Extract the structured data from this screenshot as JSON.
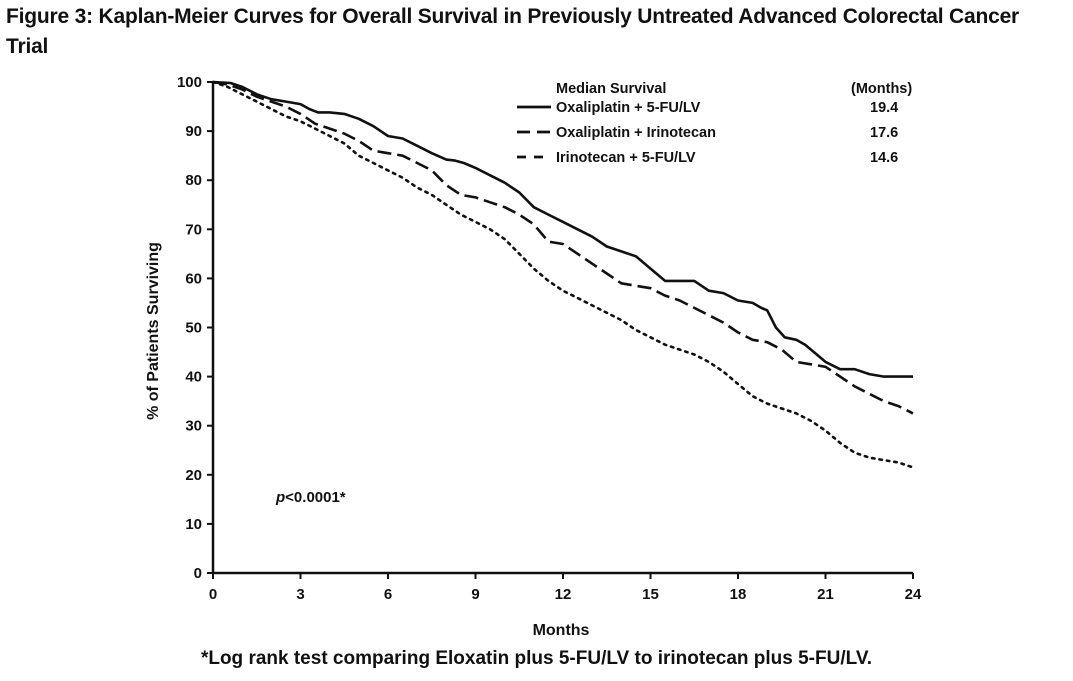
{
  "figure": {
    "title": "Figure 3: Kaplan-Meier Curves for Overall Survival in Previously Untreated Advanced Colorectal Cancer Trial",
    "footnote": "*Log rank test comparing Eloxatin plus 5-FU/LV to irinotecan plus 5-FU/LV."
  },
  "chart_data": {
    "type": "line",
    "title": "Figure 3: Kaplan-Meier Curves for Overall Survival in Previously Untreated Advanced Colorectal Cancer Trial",
    "xlabel": "Months",
    "ylabel": "% of Patients Surviving",
    "xlim": [
      0,
      24
    ],
    "ylim": [
      0,
      100
    ],
    "xticks": [
      "0",
      "3",
      "6",
      "9",
      "12",
      "15",
      "18",
      "21",
      "24"
    ],
    "yticks": [
      "0",
      "10",
      "20",
      "30",
      "40",
      "50",
      "60",
      "70",
      "80",
      "90",
      "100"
    ],
    "grid": false,
    "legend": {
      "position": "top-right",
      "header": "Median Survival",
      "value_header": "(Months)"
    },
    "annotation": {
      "prefix": "p",
      "text": "<0.0001*"
    },
    "series": [
      {
        "name": "Oxaliplatin + 5-FU/LV",
        "median": "19.4",
        "style": "solid",
        "x": [
          0,
          0.6,
          1,
          1.5,
          2,
          2.5,
          3,
          3.3,
          3.6,
          4,
          4.5,
          5,
          5.5,
          6,
          6.5,
          7,
          7.5,
          8,
          8.3,
          8.6,
          9,
          9.5,
          10,
          10.5,
          11,
          11.5,
          12,
          12.5,
          13,
          13.5,
          14,
          14.5,
          15,
          15.5,
          16,
          16.5,
          17,
          17.5,
          18,
          18.5,
          18.8,
          19,
          19.3,
          19.6,
          20,
          20.3,
          20.6,
          21,
          21.5,
          22,
          22.5,
          23,
          23.5,
          24
        ],
        "y": [
          100,
          99.8,
          99,
          97.5,
          96.5,
          96,
          95.5,
          94.5,
          93.8,
          93.8,
          93.5,
          92.5,
          91,
          89,
          88.5,
          87,
          85.5,
          84.2,
          84,
          83.5,
          82.5,
          81,
          79.5,
          77.5,
          74.5,
          73,
          71.5,
          70,
          68.5,
          66.5,
          65.5,
          64.5,
          62,
          59.5,
          59.5,
          59.5,
          57.5,
          57,
          55.5,
          55,
          54,
          53.5,
          50,
          48,
          47.5,
          46.5,
          45,
          43,
          41.5,
          41.5,
          40.5,
          40,
          40,
          40
        ]
      },
      {
        "name": "Oxaliplatin + Irinotecan",
        "median": "17.6",
        "style": "dashed",
        "x": [
          0,
          0.5,
          1,
          1.5,
          2,
          2.5,
          3,
          3.5,
          4,
          4.5,
          5,
          5.5,
          6,
          6.5,
          7,
          7.5,
          8,
          8.5,
          9,
          9.5,
          10,
          10.5,
          11,
          11.5,
          12,
          12.5,
          13,
          13.5,
          14,
          14.5,
          15,
          15.5,
          16,
          16.5,
          17,
          17.5,
          18,
          18.5,
          19,
          19.5,
          20,
          20.5,
          21,
          21.5,
          22,
          22.5,
          23,
          23.5,
          24
        ],
        "y": [
          100,
          99.5,
          98.5,
          97,
          96,
          95,
          93.5,
          91.5,
          90.5,
          89.5,
          88,
          86,
          85.5,
          85,
          83.5,
          82,
          79,
          77,
          76.5,
          75.5,
          74.5,
          73,
          71,
          67.5,
          67,
          65,
          63,
          61,
          59,
          58.5,
          58,
          56.5,
          55.5,
          54,
          52.5,
          51,
          49,
          47.5,
          47,
          45.5,
          43,
          42.5,
          42,
          40,
          38,
          36.5,
          35,
          34,
          32.5
        ]
      },
      {
        "name": "Irinotecan + 5-FU/LV",
        "median": "14.6",
        "style": "dotted",
        "x": [
          0,
          0.5,
          1,
          1.5,
          2,
          2.5,
          3,
          3.5,
          4,
          4.5,
          5,
          5.5,
          6,
          6.5,
          7,
          7.5,
          8,
          8.5,
          9,
          9.5,
          10,
          10.5,
          11,
          11.5,
          12,
          12.5,
          13,
          13.5,
          14,
          14.5,
          15,
          15.5,
          16,
          16.5,
          17,
          17.5,
          18,
          18.5,
          19,
          19.5,
          20,
          20.5,
          21,
          21.5,
          22,
          22.5,
          23,
          23.5,
          24
        ],
        "y": [
          100,
          99,
          97.5,
          96,
          94.5,
          93,
          92,
          90.5,
          89,
          87.5,
          85,
          83.5,
          82,
          80.5,
          78.5,
          77,
          75,
          73,
          71.5,
          70,
          68,
          65,
          62,
          59.5,
          57.5,
          56,
          54.5,
          53,
          51.5,
          49.5,
          48,
          46.5,
          45.5,
          44.5,
          43,
          41,
          38.5,
          36,
          34.5,
          33.5,
          32.5,
          31,
          29,
          26.5,
          24.5,
          23.5,
          23,
          22.5,
          21.5
        ]
      }
    ]
  }
}
